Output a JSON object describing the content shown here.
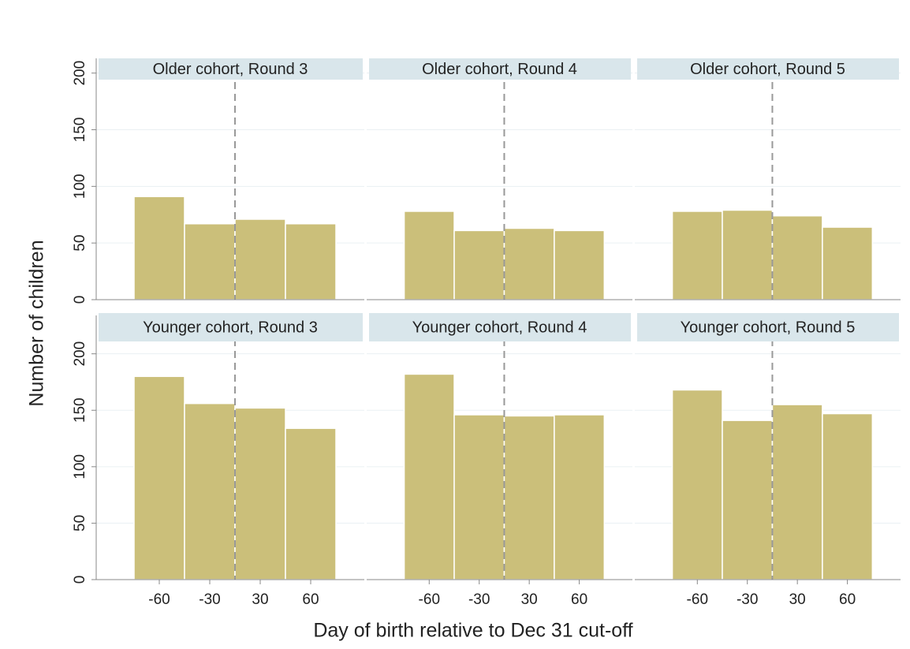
{
  "ylabel": "Number of children",
  "xlabel": "Day of birth relative to Dec 31 cut-off",
  "chart_data": [
    {
      "type": "histogram",
      "title": "Older cohort, Round 3",
      "bins": [
        -64,
        -32,
        0,
        32,
        64
      ],
      "values": [
        91,
        67,
        71,
        67
      ],
      "color": "#cbbf7a",
      "xlim": [
        -88,
        82
      ],
      "ylim": [
        0,
        213
      ],
      "yticks": [
        0,
        50,
        100,
        150,
        200
      ],
      "xticks": [
        {
          "value": -48,
          "label": "-60"
        },
        {
          "value": -16,
          "label": "-30"
        },
        {
          "value": 16,
          "label": "30"
        },
        {
          "value": 48,
          "label": "60"
        }
      ],
      "vline": 0,
      "grid": true
    },
    {
      "type": "histogram",
      "title": "Older cohort, Round 4",
      "bins": [
        -64,
        -32,
        0,
        32,
        64
      ],
      "values": [
        78,
        61,
        63,
        61
      ],
      "color": "#cbbf7a",
      "xlim": [
        -88,
        82
      ],
      "ylim": [
        0,
        213
      ],
      "yticks": [
        0,
        50,
        100,
        150,
        200
      ],
      "xticks": [
        {
          "value": -48,
          "label": "-60"
        },
        {
          "value": -16,
          "label": "-30"
        },
        {
          "value": 16,
          "label": "30"
        },
        {
          "value": 48,
          "label": "60"
        }
      ],
      "vline": 0,
      "grid": true
    },
    {
      "type": "histogram",
      "title": "Older cohort, Round 5",
      "bins": [
        -64,
        -32,
        0,
        32,
        64
      ],
      "values": [
        78,
        79,
        74,
        64
      ],
      "color": "#cbbf7a",
      "xlim": [
        -88,
        82
      ],
      "ylim": [
        0,
        213
      ],
      "yticks": [
        0,
        50,
        100,
        150,
        200
      ],
      "xticks": [
        {
          "value": -48,
          "label": "-60"
        },
        {
          "value": -16,
          "label": "-30"
        },
        {
          "value": 16,
          "label": "30"
        },
        {
          "value": 48,
          "label": "60"
        }
      ],
      "vline": 0,
      "grid": true
    },
    {
      "type": "histogram",
      "title": "Younger cohort, Round 3",
      "bins": [
        -64,
        -32,
        0,
        32,
        64
      ],
      "values": [
        180,
        156,
        152,
        134
      ],
      "color": "#cbbf7a",
      "xlim": [
        -88,
        82
      ],
      "ylim": [
        0,
        234
      ],
      "yticks": [
        0,
        50,
        100,
        150,
        200
      ],
      "xticks": [
        {
          "value": -48,
          "label": "-60"
        },
        {
          "value": -16,
          "label": "-30"
        },
        {
          "value": 16,
          "label": "30"
        },
        {
          "value": 48,
          "label": "60"
        }
      ],
      "vline": 0,
      "grid": true
    },
    {
      "type": "histogram",
      "title": "Younger cohort, Round 4",
      "bins": [
        -64,
        -32,
        0,
        32,
        64
      ],
      "values": [
        182,
        146,
        145,
        146
      ],
      "color": "#cbbf7a",
      "xlim": [
        -88,
        82
      ],
      "ylim": [
        0,
        234
      ],
      "yticks": [
        0,
        50,
        100,
        150,
        200
      ],
      "xticks": [
        {
          "value": -48,
          "label": "-60"
        },
        {
          "value": -16,
          "label": "-30"
        },
        {
          "value": 16,
          "label": "30"
        },
        {
          "value": 48,
          "label": "60"
        }
      ],
      "vline": 0,
      "grid": true
    },
    {
      "type": "histogram",
      "title": "Younger cohort, Round 5",
      "bins": [
        -64,
        -32,
        0,
        32,
        64
      ],
      "values": [
        168,
        141,
        155,
        147
      ],
      "color": "#cbbf7a",
      "xlim": [
        -88,
        82
      ],
      "ylim": [
        0,
        234
      ],
      "yticks": [
        0,
        50,
        100,
        150,
        200
      ],
      "xticks": [
        {
          "value": -48,
          "label": "-60"
        },
        {
          "value": -16,
          "label": "-30"
        },
        {
          "value": 16,
          "label": "30"
        },
        {
          "value": 48,
          "label": "60"
        }
      ],
      "vline": 0,
      "grid": true
    }
  ]
}
